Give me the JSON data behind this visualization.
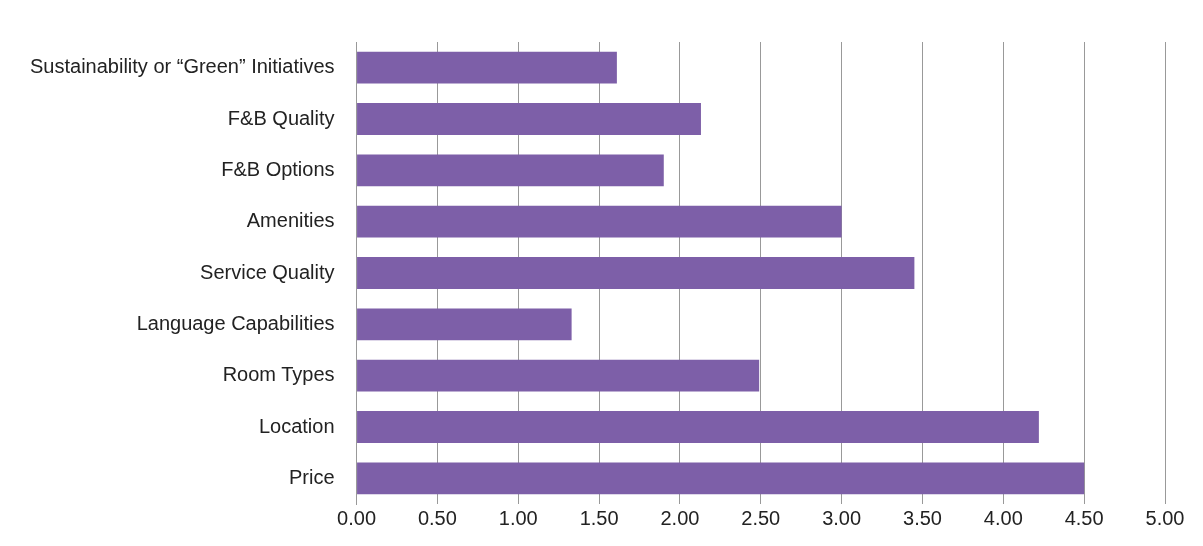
{
  "chart_data": {
    "type": "bar",
    "orientation": "horizontal",
    "categories": [
      "Sustainability or “Green” Initiatives",
      "F&B Quality",
      "F&B Options",
      "Amenities",
      "Service Quality",
      "Language Capabilities",
      "Room Types",
      "Location",
      "Price"
    ],
    "values": [
      1.61,
      2.13,
      1.9,
      3.0,
      3.45,
      1.33,
      2.49,
      4.22,
      4.5
    ],
    "color": "#7d5fa8",
    "xlim": [
      0,
      5
    ],
    "xticks": [
      {
        "value": 0,
        "label": "0.00"
      },
      {
        "value": 0.5,
        "label": "0.50"
      },
      {
        "value": 1,
        "label": "1.00"
      },
      {
        "value": 1.5,
        "label": "1.50"
      },
      {
        "value": 2,
        "label": "2.00"
      },
      {
        "value": 2.5,
        "label": "2.50"
      },
      {
        "value": 3,
        "label": "3.00"
      },
      {
        "value": 3.5,
        "label": "3.50"
      },
      {
        "value": 4,
        "label": "4.00"
      },
      {
        "value": 4.5,
        "label": "4.50"
      },
      {
        "value": 5,
        "label": "5.00"
      }
    ],
    "grid": "x",
    "legend": false
  }
}
